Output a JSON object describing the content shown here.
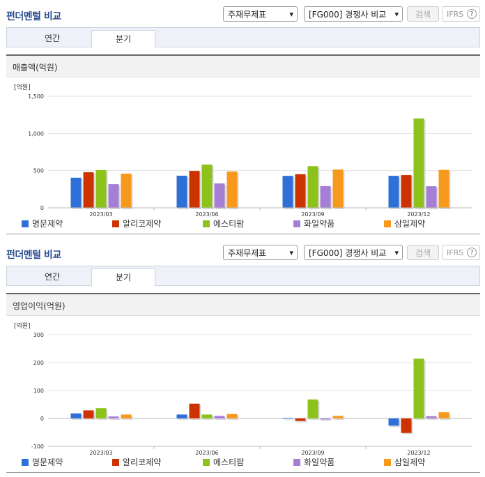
{
  "panels": [
    {
      "header": {
        "title": "펀더멘털 비교"
      },
      "controls": {
        "statement_select": "주재무제표",
        "compare_select": "[FG000] 경쟁사 비교",
        "search_label": "검색",
        "ifrs_label": "IFRS",
        "help_glyph": "?"
      },
      "tabs": [
        {
          "label": "연간",
          "active": false
        },
        {
          "label": "분기",
          "active": true
        }
      ],
      "chart_title": "매출액(억원)",
      "unit_label": "[억원]",
      "chart_data": {
        "type": "bar",
        "title": "매출액(억원)",
        "ylabel": "[억원]",
        "categories": [
          "2023/03",
          "2023/06",
          "2023/09",
          "2023/12"
        ],
        "ylim": [
          0,
          1500
        ],
        "yticks": [
          0,
          500,
          1000,
          1500
        ],
        "ytick_labels": [
          "0",
          "500",
          "1,000",
          "1,500"
        ],
        "grid": true,
        "legend": "bottom",
        "series": [
          {
            "name": "명문제약",
            "color": "#2f6fd8",
            "values": [
              405,
              432,
              430,
              430
            ]
          },
          {
            "name": "알리코제약",
            "color": "#cc3300",
            "values": [
              478,
              496,
              452,
              440
            ]
          },
          {
            "name": "에스티팜",
            "color": "#8cc21a",
            "values": [
              507,
              582,
              560,
              1202
            ]
          },
          {
            "name": "화일약품",
            "color": "#a57fd6",
            "values": [
              318,
              328,
              292,
              290
            ]
          },
          {
            "name": "삼일제약",
            "color": "#f7991c",
            "values": [
              460,
              488,
              515,
              510
            ]
          }
        ]
      }
    },
    {
      "header": {
        "title": "펀더멘털 비교"
      },
      "controls": {
        "statement_select": "주재무제표",
        "compare_select": "[FG000] 경쟁사 비교",
        "search_label": "검색",
        "ifrs_label": "IFRS",
        "help_glyph": "?"
      },
      "tabs": [
        {
          "label": "연간",
          "active": false
        },
        {
          "label": "분기",
          "active": true
        }
      ],
      "chart_title": "영업이익(억원)",
      "unit_label": "[억원]",
      "chart_data": {
        "type": "bar",
        "title": "영업이익(억원)",
        "ylabel": "[억원]",
        "categories": [
          "2023/03",
          "2023/06",
          "2023/09",
          "2023/12"
        ],
        "ylim": [
          -100,
          300
        ],
        "yticks": [
          -100,
          0,
          100,
          200,
          300
        ],
        "ytick_labels": [
          "-100",
          "0",
          "100",
          "200",
          "300"
        ],
        "grid": true,
        "legend": "bottom",
        "series": [
          {
            "name": "명문제약",
            "color": "#2f6fd8",
            "values": [
              18,
              14,
              1,
              -26
            ]
          },
          {
            "name": "알리코제약",
            "color": "#cc3300",
            "values": [
              29,
              53,
              -9,
              -52
            ]
          },
          {
            "name": "에스티팜",
            "color": "#8cc21a",
            "values": [
              37,
              14,
              68,
              214
            ]
          },
          {
            "name": "화일약품",
            "color": "#a57fd6",
            "values": [
              7,
              9,
              -4,
              8
            ]
          },
          {
            "name": "삼일제약",
            "color": "#f7991c",
            "values": [
              14,
              16,
              9,
              22
            ]
          }
        ]
      }
    }
  ]
}
